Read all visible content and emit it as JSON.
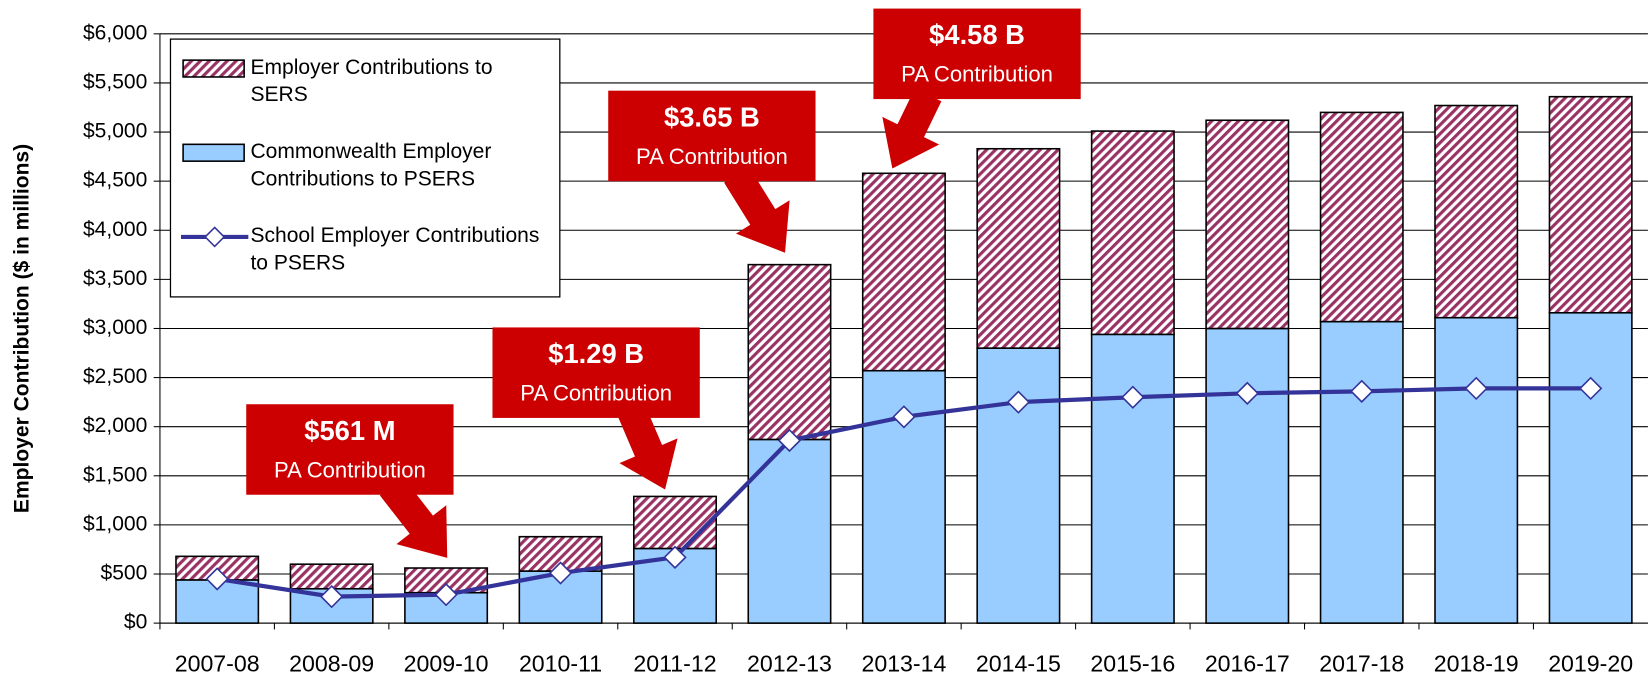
{
  "chart_data": {
    "type": "stacked-bar-line",
    "y_label": "Employer Contribution  ($ in millions)",
    "categories": [
      "2007-08",
      "2008-09",
      "2009-10",
      "2010-11",
      "2011-12",
      "2012-13",
      "2013-14",
      "2014-15",
      "2015-16",
      "2016-17",
      "2017-18",
      "2018-19",
      "2019-20"
    ],
    "series": [
      {
        "name": "Commonwealth Employer Contributions to PSERS",
        "kind": "bar",
        "color": "#99ccff",
        "values": [
          440,
          350,
          310,
          530,
          760,
          1870,
          2570,
          2800,
          2940,
          3000,
          3070,
          3110,
          3160
        ]
      },
      {
        "name": "Employer Contributions to SERS",
        "kind": "bar",
        "color": "#993366",
        "hatch": true,
        "values": [
          240,
          250,
          251,
          350,
          530,
          1780,
          2010,
          2030,
          2070,
          2120,
          2130,
          2160,
          2200
        ]
      },
      {
        "name": "School Employer Contributions to PSERS",
        "kind": "line",
        "color": "#333399",
        "values": [
          450,
          270,
          290,
          510,
          670,
          1860,
          2100,
          2250,
          2300,
          2340,
          2360,
          2390,
          2390
        ]
      }
    ],
    "ylim": [
      0,
      6000
    ],
    "yticks": [
      {
        "value": 0,
        "label": "$0"
      },
      {
        "value": 500,
        "label": "$500"
      },
      {
        "value": 1000,
        "label": "$1,000"
      },
      {
        "value": 1500,
        "label": "$1,500"
      },
      {
        "value": 2000,
        "label": "$2,000"
      },
      {
        "value": 2500,
        "label": "$2,500"
      },
      {
        "value": 3000,
        "label": "$3,000"
      },
      {
        "value": 3500,
        "label": "$3,500"
      },
      {
        "value": 4000,
        "label": "$4,000"
      },
      {
        "value": 4500,
        "label": "$4,500"
      },
      {
        "value": 5000,
        "label": "$5,000"
      },
      {
        "value": 5500,
        "label": "$5,500"
      },
      {
        "value": 6000,
        "label": "$6,000"
      }
    ],
    "grid": true,
    "legend": "top-left",
    "annotations": [
      {
        "label": "$561 M",
        "text": "PA Contribution"
      },
      {
        "label": "$1.29 B",
        "text": "PA Contribution"
      },
      {
        "label": "$3.65 B",
        "text": "PA Contribution"
      },
      {
        "label": "$4.58 B",
        "text": "PA Contribution"
      }
    ],
    "annotation_color": "#cc0000"
  }
}
